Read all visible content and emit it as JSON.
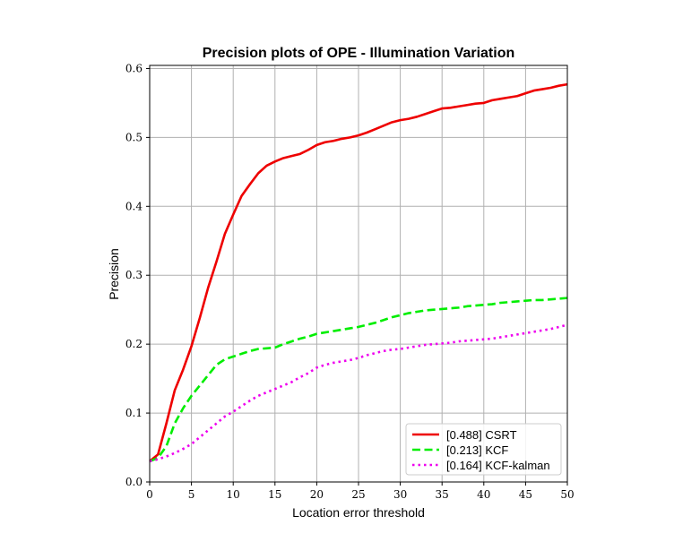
{
  "chart_data": {
    "type": "line",
    "title": "Precision plots of OPE - Illumination Variation",
    "xlabel": "Location error threshold",
    "ylabel": "Precision",
    "xlim": [
      0,
      50
    ],
    "ylim": [
      0,
      0.6
    ],
    "xticks": [
      0,
      5,
      10,
      15,
      20,
      25,
      30,
      35,
      40,
      45,
      50
    ],
    "yticks": [
      0.0,
      0.1,
      0.2,
      0.3,
      0.4,
      0.5,
      0.6
    ],
    "xtick_labels": [
      "0",
      "5",
      "10",
      "15",
      "20",
      "25",
      "30",
      "35",
      "40",
      "45",
      "50"
    ],
    "ytick_labels": [
      "0.0",
      "0.1",
      "0.2",
      "0.3",
      "0.4",
      "0.5",
      "0.6"
    ],
    "grid": true,
    "legend_position": "lower-right",
    "x": [
      0,
      1,
      2,
      3,
      4,
      5,
      6,
      7,
      8,
      9,
      10,
      11,
      12,
      13,
      14,
      15,
      16,
      17,
      18,
      19,
      20,
      21,
      22,
      23,
      24,
      25,
      26,
      27,
      28,
      29,
      30,
      31,
      32,
      33,
      34,
      35,
      36,
      37,
      38,
      39,
      40,
      41,
      42,
      43,
      44,
      45,
      46,
      47,
      48,
      49,
      50
    ],
    "series": [
      {
        "name": "[0.488] CSRT",
        "color": "#ee0000",
        "style": "solid",
        "values": [
          0.03,
          0.04,
          0.085,
          0.133,
          0.163,
          0.197,
          0.238,
          0.282,
          0.32,
          0.36,
          0.388,
          0.415,
          0.432,
          0.448,
          0.459,
          0.465,
          0.47,
          0.473,
          0.476,
          0.482,
          0.489,
          0.493,
          0.495,
          0.498,
          0.5,
          0.503,
          0.507,
          0.512,
          0.517,
          0.522,
          0.525,
          0.527,
          0.53,
          0.534,
          0.538,
          0.542,
          0.543,
          0.545,
          0.547,
          0.549,
          0.55,
          0.554,
          0.556,
          0.558,
          0.56,
          0.564,
          0.568,
          0.57,
          0.572,
          0.575,
          0.577
        ]
      },
      {
        "name": "[0.213] KCF",
        "color": "#00ee00",
        "style": "dashed",
        "values": [
          0.03,
          0.035,
          0.052,
          0.085,
          0.107,
          0.125,
          0.14,
          0.155,
          0.17,
          0.178,
          0.182,
          0.186,
          0.19,
          0.193,
          0.194,
          0.195,
          0.2,
          0.204,
          0.208,
          0.211,
          0.215,
          0.217,
          0.219,
          0.221,
          0.223,
          0.225,
          0.228,
          0.231,
          0.235,
          0.239,
          0.242,
          0.245,
          0.247,
          0.249,
          0.25,
          0.251,
          0.252,
          0.253,
          0.255,
          0.256,
          0.257,
          0.258,
          0.26,
          0.261,
          0.262,
          0.263,
          0.264,
          0.264,
          0.265,
          0.266,
          0.267
        ]
      },
      {
        "name": "[0.164] KCF-kalman",
        "color": "#ee00ee",
        "style": "dotted",
        "values": [
          0.03,
          0.033,
          0.037,
          0.042,
          0.048,
          0.055,
          0.065,
          0.075,
          0.085,
          0.095,
          0.102,
          0.11,
          0.118,
          0.125,
          0.13,
          0.135,
          0.14,
          0.145,
          0.152,
          0.158,
          0.166,
          0.17,
          0.173,
          0.175,
          0.177,
          0.18,
          0.184,
          0.187,
          0.19,
          0.192,
          0.193,
          0.195,
          0.197,
          0.199,
          0.2,
          0.201,
          0.202,
          0.204,
          0.205,
          0.206,
          0.207,
          0.208,
          0.21,
          0.212,
          0.214,
          0.216,
          0.218,
          0.22,
          0.222,
          0.225,
          0.228
        ]
      }
    ]
  }
}
